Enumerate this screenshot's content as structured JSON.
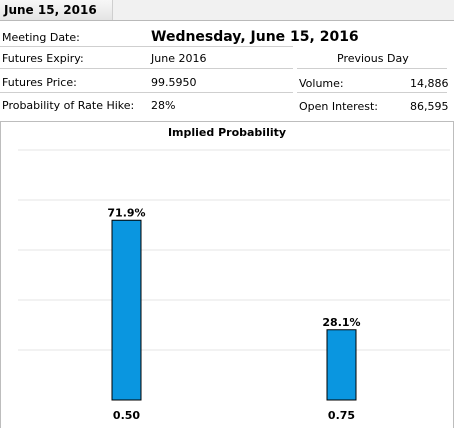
{
  "header": {
    "title": "June 15, 2016"
  },
  "meeting": {
    "label": "Meeting Date:",
    "value": "Wednesday, June 15, 2016"
  },
  "rows": [
    {
      "label": "Futures Expiry:",
      "value": "June 2016"
    },
    {
      "label": "Futures Price:",
      "value": "99.5950"
    },
    {
      "label": "Probability of Rate Hike:",
      "value": "28%"
    }
  ],
  "previous_day": {
    "title": "Previous Day",
    "volume": {
      "label": "Volume:",
      "value": "14,886"
    },
    "open_interest": {
      "label": "Open Interest:",
      "value": "86,595"
    }
  },
  "colors": {
    "bar": "#0a96e0",
    "bar_border": "#000000",
    "grid": "#e4e4e4"
  },
  "chart_data": {
    "type": "bar",
    "title": "Implied Probability",
    "categories": [
      "0.50",
      "0.75"
    ],
    "values": [
      71.9,
      28.1
    ],
    "data_labels": [
      "71.9%",
      "28.1%"
    ],
    "ylim": [
      0,
      100
    ],
    "grid": true,
    "legend": "none"
  }
}
